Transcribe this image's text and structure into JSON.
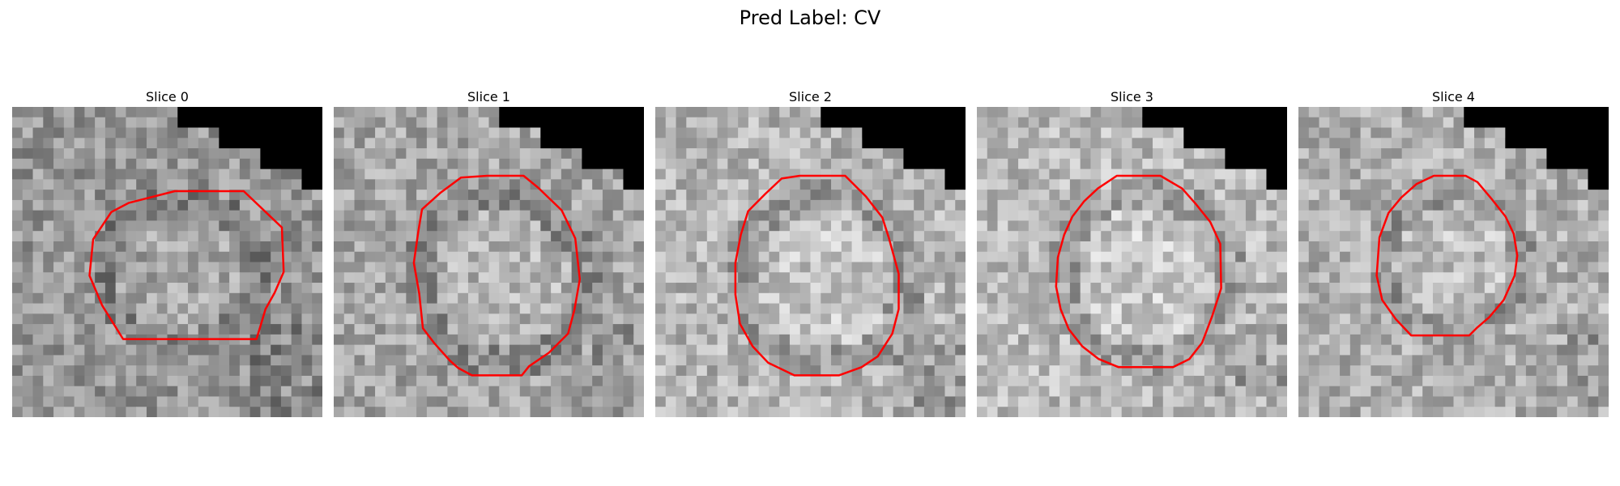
{
  "figure": {
    "title": "Pred Label: CV",
    "contour_color": "#ff0000",
    "panels": [
      {
        "title": "Slice 0",
        "seed": 11,
        "base_gray": 150,
        "contour": [
          [
            9,
            1.7
          ],
          [
            16.6,
            1.7
          ],
          [
            20.8,
            5.7
          ],
          [
            21,
            10.6
          ],
          [
            20,
            12.9
          ],
          [
            19,
            14.7
          ],
          [
            18.4,
            16.7
          ],
          [
            18,
            18
          ],
          [
            3.3,
            18
          ],
          [
            1,
            14.3
          ],
          [
            -0.4,
            11
          ],
          [
            0,
            7
          ],
          [
            2,
            4
          ],
          [
            3.9,
            3
          ]
        ],
        "center": [
          9,
          10
        ],
        "radius": 8
      },
      {
        "title": "Slice 1",
        "seed": 23,
        "base_gray": 165,
        "contour": [
          [
            8,
            0
          ],
          [
            12,
            0
          ],
          [
            13.6,
            1.3
          ],
          [
            16.2,
            3.8
          ],
          [
            17.7,
            6.9
          ],
          [
            18.2,
            11.4
          ],
          [
            17.6,
            14.8
          ],
          [
            16.9,
            17.4
          ],
          [
            14.8,
            19.5
          ],
          [
            12.6,
            21
          ],
          [
            11.8,
            22
          ],
          [
            6.3,
            22
          ],
          [
            4.8,
            21.2
          ],
          [
            3.9,
            20.4
          ],
          [
            2.2,
            18.5
          ],
          [
            0.9,
            16.8
          ],
          [
            0.5,
            13
          ],
          [
            -0.1,
            9.6
          ],
          [
            0.4,
            6.1
          ],
          [
            0.8,
            3.7
          ],
          [
            2.8,
            1.9
          ],
          [
            5.1,
            0.2
          ]
        ],
        "center": [
          9,
          11
        ],
        "radius": 9
      },
      {
        "title": "Slice 2",
        "seed": 37,
        "base_gray": 180,
        "contour": [
          [
            7,
            0
          ],
          [
            12,
            0
          ],
          [
            14.3,
            2.3
          ],
          [
            16.1,
            4.6
          ],
          [
            16.8,
            6.8
          ],
          [
            17.9,
            10.8
          ],
          [
            17.9,
            14.7
          ],
          [
            17.2,
            17.4
          ],
          [
            15.6,
            19.9
          ],
          [
            13.8,
            21.1
          ],
          [
            11.3,
            22
          ],
          [
            6.4,
            22
          ],
          [
            3.5,
            20.6
          ],
          [
            1.8,
            18.8
          ],
          [
            0.4,
            16.3
          ],
          [
            -0.1,
            13.1
          ],
          [
            -0.1,
            9.6
          ],
          [
            0.5,
            6.5
          ],
          [
            1.3,
            3.9
          ],
          [
            3.2,
            2
          ],
          [
            5,
            0.3
          ]
        ],
        "center": [
          9,
          11
        ],
        "radius": 9
      },
      {
        "title": "Slice 3",
        "seed": 53,
        "base_gray": 185,
        "contour": [
          [
            6.5,
            0
          ],
          [
            11.3,
            0
          ],
          [
            13.7,
            1.4
          ],
          [
            15.2,
            3.1
          ],
          [
            16.8,
            5.1
          ],
          [
            17.9,
            7.5
          ],
          [
            18,
            12.4
          ],
          [
            17,
            15.5
          ],
          [
            15.9,
            18.4
          ],
          [
            14.5,
            20.2
          ],
          [
            12.7,
            21.1
          ],
          [
            6.7,
            21.1
          ],
          [
            4.5,
            20.2
          ],
          [
            2.7,
            18.8
          ],
          [
            1.2,
            16.9
          ],
          [
            0.3,
            14.7
          ],
          [
            -0.2,
            12.2
          ],
          [
            0,
            9
          ],
          [
            0.7,
            6.5
          ],
          [
            1.6,
            4.5
          ],
          [
            2.9,
            2.8
          ],
          [
            4.4,
            1.4
          ]
        ],
        "center": [
          9,
          10.5
        ],
        "radius": 9
      },
      {
        "title": "Slice 4",
        "seed": 71,
        "base_gray": 175,
        "contour": [
          [
            6,
            0
          ],
          [
            9.5,
            0
          ],
          [
            10.8,
            0.7
          ],
          [
            12.4,
            2.6
          ],
          [
            13.9,
            4.5
          ],
          [
            14.8,
            6.4
          ],
          [
            15.2,
            8.8
          ],
          [
            14.9,
            11
          ],
          [
            13.7,
            13.7
          ],
          [
            12.1,
            15.6
          ],
          [
            10.7,
            16.8
          ],
          [
            9.9,
            17.6
          ],
          [
            3.5,
            17.6
          ],
          [
            1.8,
            15.8
          ],
          [
            0.3,
            13.7
          ],
          [
            -0.3,
            11
          ],
          [
            0,
            6.8
          ],
          [
            1,
            4.1
          ],
          [
            2.4,
            2.4
          ],
          [
            4.1,
            0.9
          ]
        ],
        "center": [
          7.5,
          9
        ],
        "radius": 7.5
      }
    ]
  }
}
